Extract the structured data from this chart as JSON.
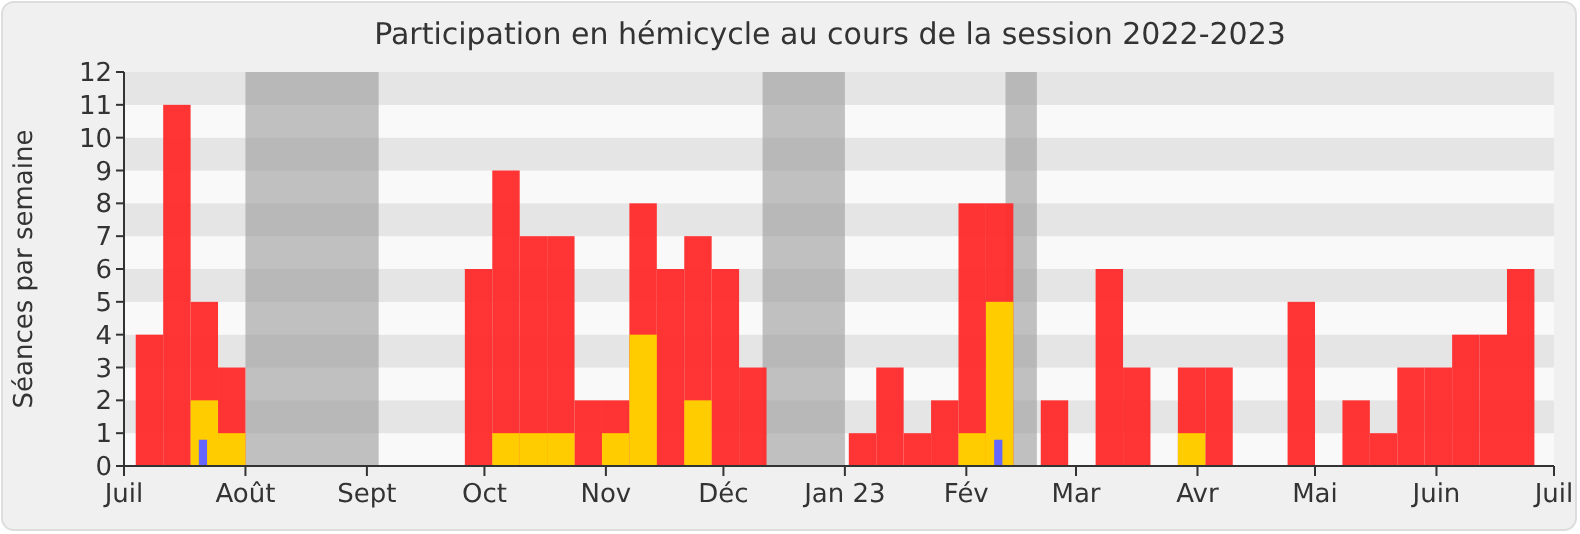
{
  "chart_data": {
    "type": "bar",
    "title": "Participation en hémicycle au cours de la session 2022-2023",
    "ylabel": "Séances par semaine",
    "x": [
      "2022-07-04",
      "2022-07-11",
      "2022-07-18",
      "2022-07-25",
      "2022-08-01",
      "2022-08-08",
      "2022-08-15",
      "2022-08-22",
      "2022-08-29",
      "2022-09-05",
      "2022-09-12",
      "2022-09-19",
      "2022-09-26",
      "2022-10-03",
      "2022-10-10",
      "2022-10-17",
      "2022-10-24",
      "2022-10-31",
      "2022-11-07",
      "2022-11-14",
      "2022-11-21",
      "2022-11-28",
      "2022-12-05",
      "2022-12-12",
      "2022-12-19",
      "2022-12-26",
      "2023-01-02",
      "2023-01-09",
      "2023-01-16",
      "2023-01-23",
      "2023-01-30",
      "2023-02-06",
      "2023-02-13",
      "2023-02-20",
      "2023-02-27",
      "2023-03-06",
      "2023-03-13",
      "2023-03-20",
      "2023-03-27",
      "2023-04-03",
      "2023-04-10",
      "2023-04-17",
      "2023-04-24",
      "2023-05-01",
      "2023-05-08",
      "2023-05-15",
      "2023-05-22",
      "2023-05-29",
      "2023-06-05",
      "2023-06-12",
      "2023-06-19",
      "2023-06-26"
    ],
    "series": [
      {
        "color": "#ff2a2a",
        "values": [
          4,
          11,
          5,
          3,
          0,
          0,
          0,
          0,
          0,
          0,
          0,
          0,
          6,
          9,
          7,
          7,
          2,
          2,
          8,
          6,
          7,
          6,
          3,
          0,
          0,
          0,
          1,
          3,
          1,
          2,
          8,
          8,
          0,
          2,
          0,
          6,
          3,
          0,
          3,
          3,
          0,
          0,
          5,
          0,
          2,
          1,
          3,
          3,
          4,
          4,
          6,
          0
        ]
      },
      {
        "color": "#ffcc00",
        "values": [
          0,
          0,
          2,
          1,
          0,
          0,
          0,
          0,
          0,
          0,
          0,
          0,
          0,
          1,
          1,
          1,
          0,
          1,
          4,
          0,
          2,
          0,
          0,
          0,
          0,
          0,
          0,
          0,
          0,
          0,
          1,
          5,
          0,
          0,
          0,
          0,
          0,
          0,
          1,
          0,
          0,
          0,
          0,
          0,
          0,
          0,
          0,
          0,
          0,
          0,
          0,
          0
        ]
      },
      {
        "color": "#6666ff",
        "values": [
          0,
          0,
          0.8,
          0,
          0,
          0,
          0,
          0,
          0,
          0,
          0,
          0,
          0,
          0,
          0,
          0,
          0,
          0,
          0,
          0,
          0,
          0,
          0,
          0,
          0,
          0,
          0,
          0,
          0,
          0,
          0,
          0.8,
          0,
          0,
          0,
          0,
          0,
          0,
          0,
          0,
          0,
          0,
          0,
          0,
          0,
          0,
          0,
          0,
          0,
          0,
          0,
          0
        ]
      }
    ],
    "bands": [
      {
        "axis": "x",
        "from": "2022-08-01",
        "to": "2022-09-04",
        "color": "#9a9a9a"
      },
      {
        "axis": "x",
        "from": "2022-12-11",
        "to": "2023-01-01",
        "color": "#9a9a9a"
      },
      {
        "axis": "x",
        "from": "2023-02-11",
        "to": "2023-02-19",
        "color": "#9a9a9a"
      }
    ],
    "xlim": [
      "2022-07-01",
      "2023-07-01"
    ],
    "xticks": [
      {
        "value": "2022-07-01",
        "label": "Juil"
      },
      {
        "value": "2022-08-01",
        "label": "Août"
      },
      {
        "value": "2022-09-01",
        "label": "Sept"
      },
      {
        "value": "2022-10-01",
        "label": "Oct"
      },
      {
        "value": "2022-11-01",
        "label": "Nov"
      },
      {
        "value": "2022-12-01",
        "label": "Déc"
      },
      {
        "value": "2023-01-01",
        "label": "Jan 23"
      },
      {
        "value": "2023-02-01",
        "label": "Fév"
      },
      {
        "value": "2023-03-01",
        "label": "Mar"
      },
      {
        "value": "2023-04-01",
        "label": "Avr"
      },
      {
        "value": "2023-05-01",
        "label": "Mai"
      },
      {
        "value": "2023-06-01",
        "label": "Juin"
      },
      {
        "value": "2023-07-01",
        "label": "Juil"
      }
    ],
    "ylim": [
      0,
      12
    ],
    "yticks": [
      0,
      1,
      2,
      3,
      4,
      5,
      6,
      7,
      8,
      9,
      10,
      11,
      12
    ]
  }
}
